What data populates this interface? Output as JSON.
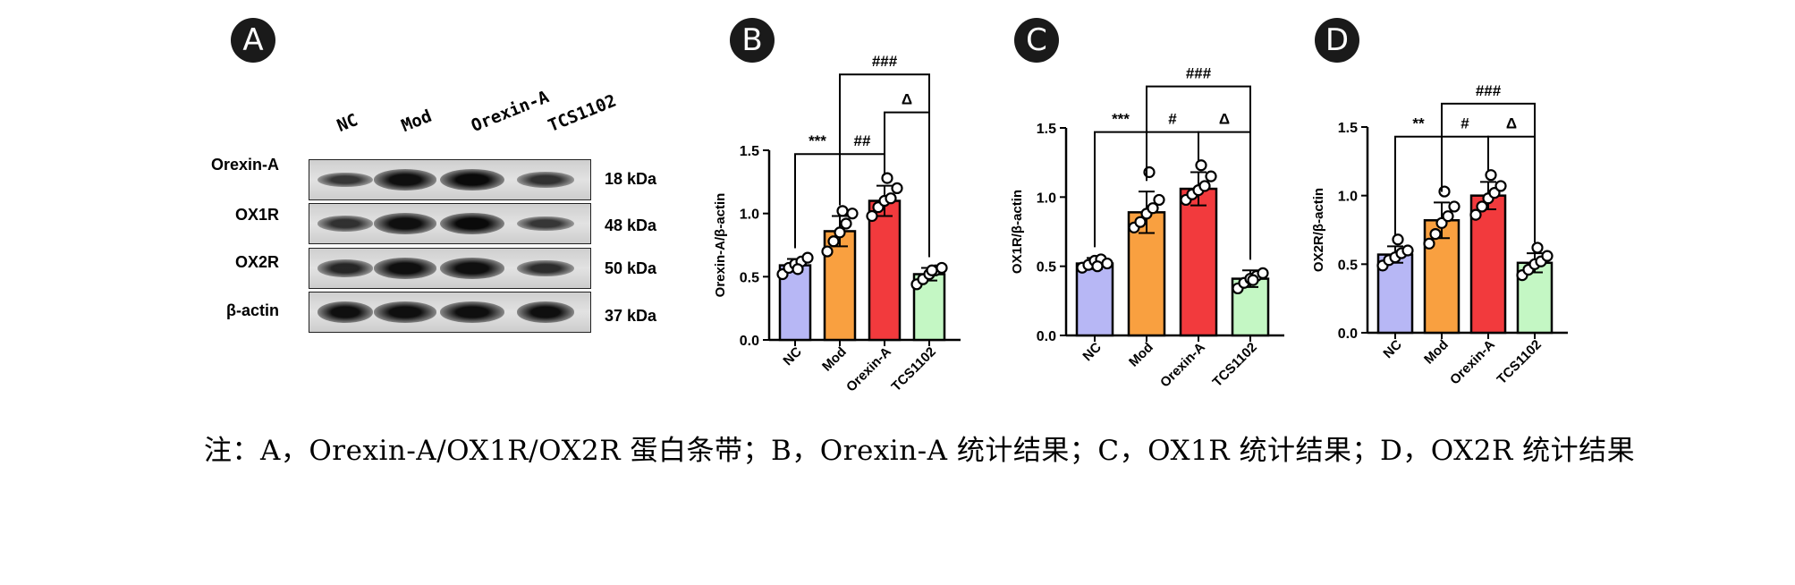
{
  "panel_labels": [
    "A",
    "B",
    "C",
    "D"
  ],
  "blot": {
    "lanes": [
      "NC",
      "Mod",
      "Orexin-A",
      "TCS1102"
    ],
    "rows": [
      {
        "protein": "Orexin-A",
        "kda": "18 kDa",
        "intensity": [
          0.55,
          0.95,
          1.0,
          0.6
        ]
      },
      {
        "protein": "OX1R",
        "kda": "48 kDa",
        "intensity": [
          0.6,
          0.95,
          1.0,
          0.55
        ]
      },
      {
        "protein": "OX2R",
        "kda": "50 kDa",
        "intensity": [
          0.7,
          0.95,
          0.95,
          0.65
        ]
      },
      {
        "protein": "β-actin",
        "kda": "37 kDa",
        "intensity": [
          0.95,
          0.95,
          0.95,
          0.95
        ]
      }
    ]
  },
  "colors": {
    "NC": "#b7b7f5",
    "Mod": "#f9a040",
    "Orexin-A": "#f23a3d",
    "TCS1102": "#c4f7c4"
  },
  "chart_data": [
    {
      "type": "bar",
      "categories": [
        "NC",
        "Mod",
        "Orexin-A",
        "TCS1102"
      ],
      "values": [
        0.59,
        0.86,
        1.1,
        0.52
      ],
      "errors": [
        0.05,
        0.12,
        0.12,
        0.05
      ],
      "points": [
        [
          0.52,
          0.57,
          0.6,
          0.62,
          0.65,
          0.56
        ],
        [
          0.7,
          0.78,
          0.85,
          0.92,
          1.0,
          1.02
        ],
        [
          0.98,
          1.05,
          1.1,
          1.12,
          1.2,
          1.28
        ],
        [
          0.44,
          0.48,
          0.52,
          0.55,
          0.57,
          0.55
        ]
      ],
      "ylabel": "Orexin-A/β-actin",
      "ylim": [
        0,
        1.5
      ],
      "yticks": [
        "0.0",
        "0.5",
        "1.0",
        "1.5"
      ],
      "annotations": [
        {
          "from": 0,
          "to": 1,
          "y": 1.47,
          "text": "***"
        },
        {
          "from": 1,
          "to": 2,
          "y": 1.47,
          "text": "##"
        },
        {
          "from": 2,
          "to": 3,
          "y": 1.8,
          "text": "Δ"
        },
        {
          "from": 1,
          "to": 3,
          "y": 2.1,
          "text": "###"
        }
      ]
    },
    {
      "type": "bar",
      "categories": [
        "NC",
        "Mod",
        "Orexin-A",
        "TCS1102"
      ],
      "values": [
        0.52,
        0.89,
        1.06,
        0.41
      ],
      "errors": [
        0.04,
        0.15,
        0.12,
        0.06
      ],
      "points": [
        [
          0.49,
          0.51,
          0.54,
          0.55,
          0.52,
          0.5
        ],
        [
          0.78,
          0.82,
          0.88,
          0.92,
          0.98,
          1.18
        ],
        [
          0.98,
          1.02,
          1.05,
          1.08,
          1.15,
          1.23
        ],
        [
          0.34,
          0.38,
          0.41,
          0.43,
          0.45,
          0.4
        ]
      ],
      "ylabel": "OX1R/β-actin",
      "ylim": [
        0,
        1.5
      ],
      "yticks": [
        "0.0",
        "0.5",
        "1.0",
        "1.5"
      ],
      "annotations": [
        {
          "from": 0,
          "to": 1,
          "y": 1.47,
          "text": "***"
        },
        {
          "from": 1,
          "to": 2,
          "y": 1.47,
          "text": "#"
        },
        {
          "from": 2,
          "to": 3,
          "y": 1.47,
          "text": "Δ"
        },
        {
          "from": 1,
          "to": 3,
          "y": 1.8,
          "text": "###"
        }
      ]
    },
    {
      "type": "bar",
      "categories": [
        "NC",
        "Mod",
        "Orexin-A",
        "TCS1102"
      ],
      "values": [
        0.57,
        0.82,
        1.0,
        0.51
      ],
      "errors": [
        0.06,
        0.13,
        0.1,
        0.07
      ],
      "points": [
        [
          0.49,
          0.53,
          0.55,
          0.58,
          0.6,
          0.68
        ],
        [
          0.65,
          0.72,
          0.8,
          0.85,
          0.92,
          1.03
        ],
        [
          0.86,
          0.92,
          0.98,
          1.02,
          1.07,
          1.15
        ],
        [
          0.42,
          0.46,
          0.5,
          0.52,
          0.56,
          0.62
        ]
      ],
      "ylabel": "OX2R/β-actin",
      "ylim": [
        0,
        1.5
      ],
      "yticks": [
        "0.0",
        "0.5",
        "1.0",
        "1.5"
      ],
      "annotations": [
        {
          "from": 0,
          "to": 1,
          "y": 1.43,
          "text": "**"
        },
        {
          "from": 1,
          "to": 2,
          "y": 1.43,
          "text": "#"
        },
        {
          "from": 2,
          "to": 3,
          "y": 1.43,
          "text": "Δ"
        },
        {
          "from": 1,
          "to": 3,
          "y": 1.67,
          "text": "###"
        }
      ]
    }
  ],
  "caption": "注：A，Orexin-A/OX1R/OX2R 蛋白条带；B，Orexin-A 统计结果；C，OX1R 统计结果；D，OX2R 统计结果"
}
